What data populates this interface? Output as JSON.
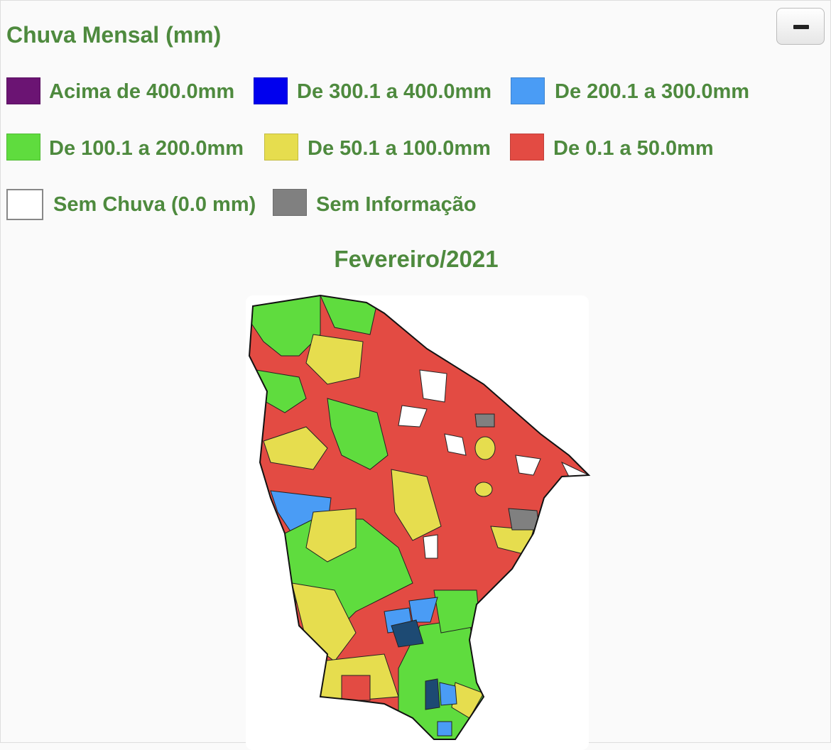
{
  "header": {
    "title": "Chuva Mensal (mm)"
  },
  "legend": {
    "items": [
      {
        "label": "Acima de 400.0mm",
        "color": "#6b1473"
      },
      {
        "label": "De 300.1 a 400.0mm",
        "color": "#0000ee"
      },
      {
        "label": "De 200.1 a 300.0mm",
        "color": "#4a9cf5"
      },
      {
        "label": "De 100.1 a 200.0mm",
        "color": "#5fdc3e"
      },
      {
        "label": "De 50.1 a 100.0mm",
        "color": "#e6dd4e"
      },
      {
        "label": "De 0.1 a 50.0mm",
        "color": "#e34b43"
      },
      {
        "label": "Sem Chuva (0.0 mm)",
        "color": "#ffffff"
      },
      {
        "label": "Sem Informação",
        "color": "#808080"
      }
    ]
  },
  "map": {
    "title": "Fevereiro/2021"
  }
}
